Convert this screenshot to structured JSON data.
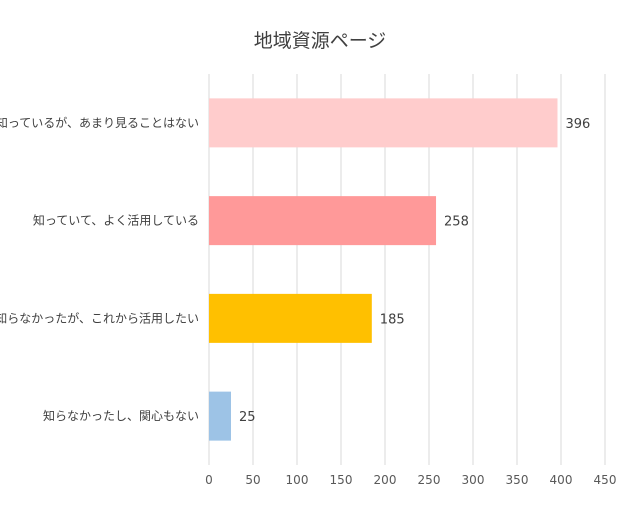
{
  "chart_data": {
    "type": "bar",
    "orientation": "horizontal",
    "title": "地域資源ページ",
    "categories": [
      "知っているが、あまり見ることはない",
      "知っていて、よく活用している",
      "知らなかったが、これから活用したい",
      "知らなかったし、関心もない"
    ],
    "values": [
      396,
      258,
      185,
      25
    ],
    "colors": [
      "#ffcccc",
      "#ff9999",
      "#ffc000",
      "#9dc3e6"
    ],
    "xlim": [
      0,
      450
    ],
    "xticks": [
      "0",
      "50",
      "100",
      "150",
      "200",
      "250",
      "300",
      "350",
      "400",
      "450"
    ],
    "grid": true,
    "xlabel": "",
    "ylabel": ""
  }
}
